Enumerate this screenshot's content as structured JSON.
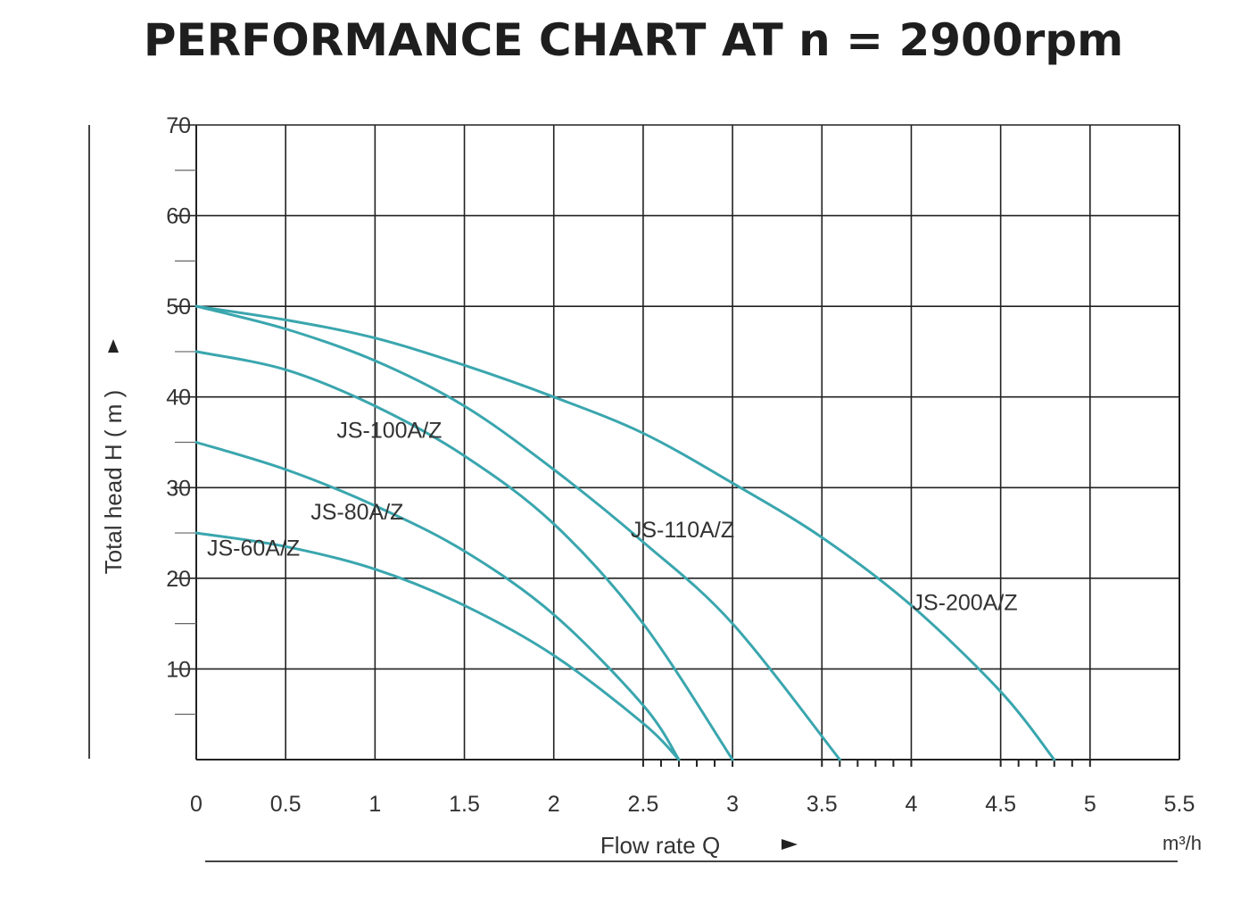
{
  "chart_data": {
    "type": "line",
    "title": "PERFORMANCE CHART AT n = 2900rpm",
    "xlabel": "Flow rate Q",
    "xunit": "m³/h",
    "ylabel": "Total head H ( m )",
    "xlim": [
      0,
      5.5
    ],
    "ylim": [
      0,
      70
    ],
    "x_ticks": [
      "0",
      "0.5",
      "1",
      "1.5",
      "2",
      "2.5",
      "3",
      "3.5",
      "4",
      "4.5",
      "5",
      "5.5"
    ],
    "y_ticks": [
      "10",
      "20",
      "30",
      "40",
      "50",
      "60",
      "70"
    ],
    "grid": true,
    "line_color": "#3aa6ae",
    "series": [
      {
        "name": "JS-60A/Z",
        "x": [
          0,
          0.5,
          1,
          1.5,
          2,
          2.5,
          2.7
        ],
        "y": [
          25,
          23.5,
          21,
          17,
          11.5,
          4,
          0
        ]
      },
      {
        "name": "JS-80A/Z",
        "x": [
          0,
          0.5,
          1,
          1.5,
          2,
          2.5,
          2.7
        ],
        "y": [
          35,
          32,
          28,
          23,
          16,
          6,
          0
        ]
      },
      {
        "name": "JS-100A/Z",
        "x": [
          0,
          0.5,
          1,
          1.5,
          2,
          2.5,
          3
        ],
        "y": [
          45,
          43,
          39,
          33.5,
          26,
          15,
          0
        ]
      },
      {
        "name": "JS-110A/Z",
        "x": [
          0,
          0.5,
          1,
          1.5,
          2,
          2.5,
          3,
          3.6
        ],
        "y": [
          50,
          47.5,
          44,
          39,
          32,
          24,
          15,
          0
        ]
      },
      {
        "name": "JS-200A/Z",
        "x": [
          0,
          0.5,
          1,
          1.5,
          2,
          2.5,
          3,
          3.5,
          4,
          4.5,
          4.8
        ],
        "y": [
          50,
          48.5,
          46.5,
          43.5,
          40,
          36,
          30.5,
          24.5,
          17,
          7.5,
          0
        ]
      }
    ]
  }
}
